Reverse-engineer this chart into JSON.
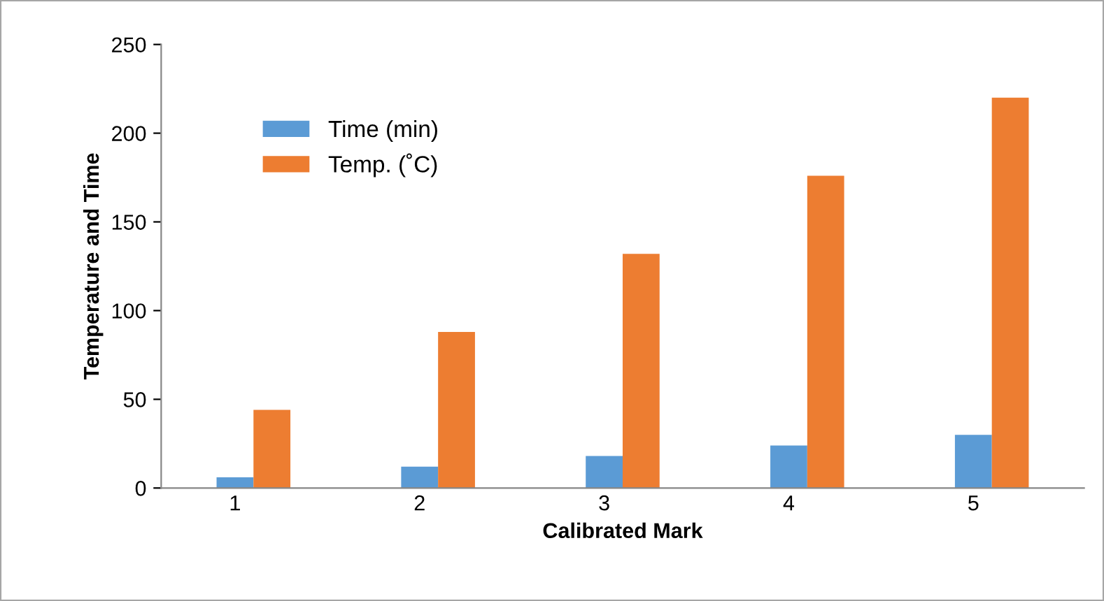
{
  "chart_data": {
    "type": "bar",
    "xlabel": "Calibrated Mark",
    "ylabel": "Temperature and Time",
    "categories": [
      "1",
      "2",
      "3",
      "4",
      "5"
    ],
    "series": [
      {
        "name": "Time (min)",
        "color": "#5b9bd5",
        "values": [
          6,
          12,
          18,
          24,
          30
        ]
      },
      {
        "name": "Temp. (˚C)",
        "color": "#ed7d31",
        "values": [
          44,
          88,
          132,
          176,
          220
        ]
      }
    ],
    "ylim": [
      0,
      250
    ],
    "yticks": [
      0,
      50,
      100,
      150,
      200,
      250
    ],
    "grid": false,
    "legend": "top left"
  }
}
